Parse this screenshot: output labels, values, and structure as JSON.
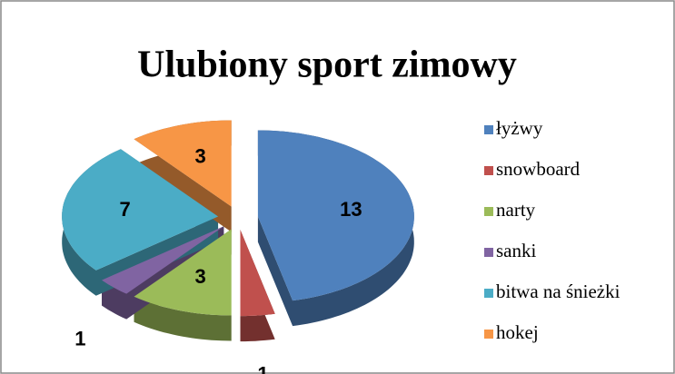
{
  "chart_data": {
    "type": "pie",
    "title": "Ulubiony sport zimowy",
    "categories": [
      "łyżwy",
      "snowboard",
      "narty",
      "sanki",
      "bitwa na śnieżki",
      "hokej"
    ],
    "values": [
      13,
      1,
      3,
      1,
      7,
      3
    ],
    "colors": [
      "#4f81bd",
      "#c0504d",
      "#9bbb59",
      "#8064a2",
      "#4bacc6",
      "#f79646"
    ],
    "legend": "right"
  }
}
